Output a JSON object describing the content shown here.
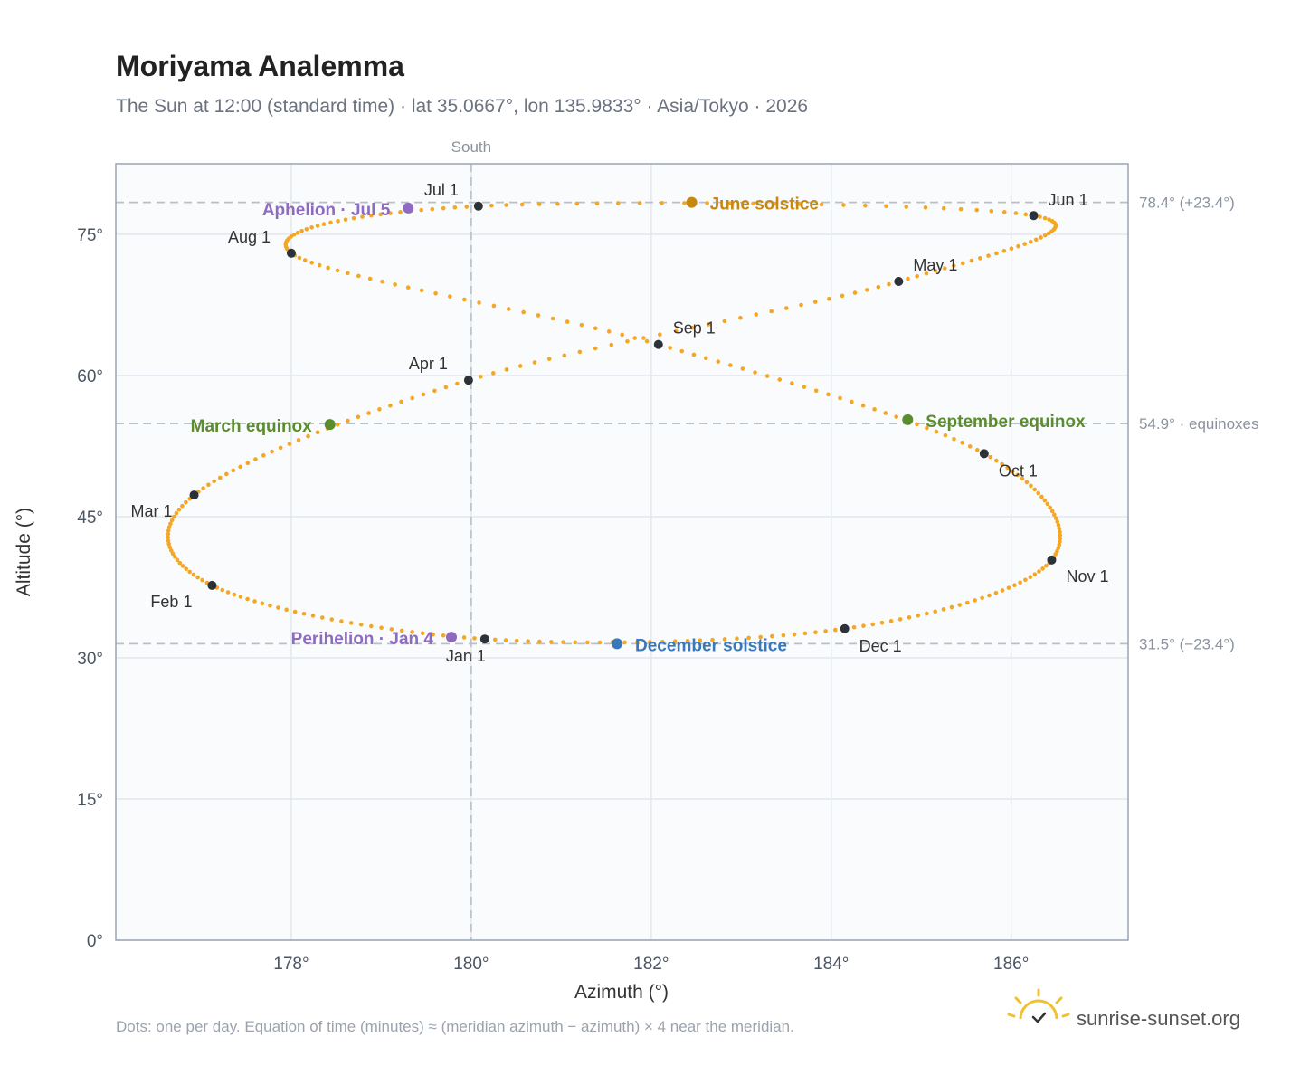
{
  "chart_data": {
    "type": "scatter",
    "title": "Moriyama Analemma",
    "subtitle": "The Sun at 12:00 (standard time) · lat 35.0667°, lon 135.9833° · Asia/Tokyo · 2026",
    "xlabel": "Azimuth (°)",
    "ylabel": "Altitude (°)",
    "xlim": [
      176.05,
      187.3
    ],
    "ylim": [
      0,
      82.5
    ],
    "xticks": [
      178,
      180,
      182,
      184,
      186
    ],
    "xtick_labels": [
      "178°",
      "180°",
      "182°",
      "184°",
      "186°"
    ],
    "yticks": [
      0,
      15,
      30,
      45,
      60,
      75
    ],
    "ytick_labels": [
      "0°",
      "15°",
      "30°",
      "45°",
      "60°",
      "75°"
    ],
    "grid": true,
    "meridian": {
      "x": 180,
      "label": "South"
    },
    "reference_lines": [
      {
        "y": 78.4,
        "label": "78.4° (+23.4°)"
      },
      {
        "y": 54.9,
        "label": "54.9° · equinoxes"
      },
      {
        "y": 31.5,
        "label": "31.5° (−23.4°)"
      }
    ],
    "path_color": "#f5a623",
    "months": [
      {
        "label": "Jan 1",
        "az": 180.15,
        "alt": 32.0
      },
      {
        "label": "Feb 1",
        "az": 177.12,
        "alt": 37.7
      },
      {
        "label": "Mar 1",
        "az": 176.92,
        "alt": 47.3
      },
      {
        "label": "Apr 1",
        "az": 179.97,
        "alt": 59.5
      },
      {
        "label": "May 1",
        "az": 184.75,
        "alt": 70.0
      },
      {
        "label": "Jun 1",
        "az": 186.25,
        "alt": 77.0
      },
      {
        "label": "Jul 1",
        "az": 180.08,
        "alt": 78.0
      },
      {
        "label": "Aug 1",
        "az": 178.0,
        "alt": 73.0
      },
      {
        "label": "Sep 1",
        "az": 182.08,
        "alt": 63.3
      },
      {
        "label": "Oct 1",
        "az": 185.7,
        "alt": 51.7
      },
      {
        "label": "Nov 1",
        "az": 186.45,
        "alt": 40.4
      },
      {
        "label": "Dec 1",
        "az": 184.15,
        "alt": 33.1
      }
    ],
    "events": [
      {
        "label": "June solstice",
        "az": 182.45,
        "alt": 78.4,
        "color": "#c8870e"
      },
      {
        "label": "Aphelion · Jul 5",
        "az": 179.3,
        "alt": 77.8,
        "color": "#8e6bbf"
      },
      {
        "label": "March equinox",
        "az": 178.43,
        "alt": 54.8,
        "color": "#5b8c2e"
      },
      {
        "label": "September equinox",
        "az": 184.85,
        "alt": 55.3,
        "color": "#5b8c2e"
      },
      {
        "label": "December solstice",
        "az": 181.62,
        "alt": 31.5,
        "color": "#3b78b8"
      },
      {
        "label": "Perihelion · Jan 4",
        "az": 179.78,
        "alt": 32.2,
        "color": "#8e6bbf"
      }
    ]
  },
  "footnote": "Dots: one per day. Equation of time (minutes) ≈ (meridian azimuth − azimuth) × 4 near the meridian.",
  "brand": {
    "text": "sunrise-sunset.org",
    "icon": "sun-check-icon",
    "color": "#f2c12e"
  }
}
